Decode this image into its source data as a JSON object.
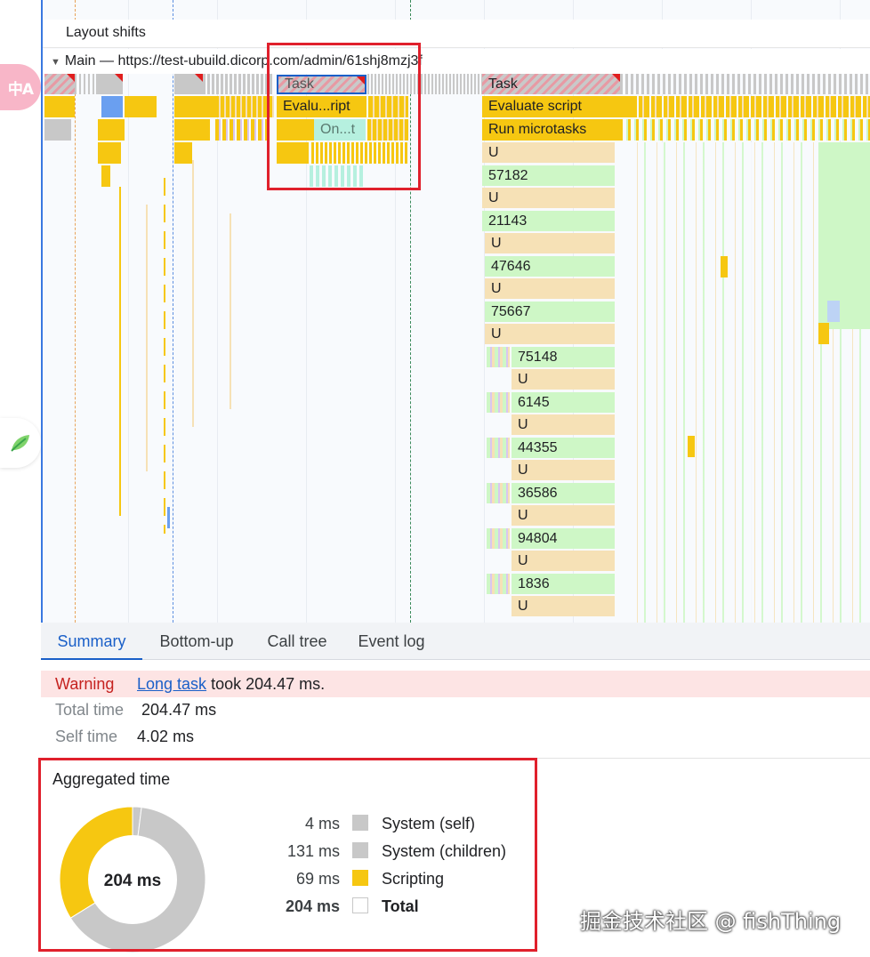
{
  "tracks": {
    "layout_shifts": "Layout shifts",
    "main_title": "Main — https://test-ubuild.dicorp.com/admin/61shj8mzj3f"
  },
  "flame": {
    "selected": {
      "task": "Task",
      "evaluate": "Evalu...ript",
      "callback": "On...t"
    },
    "big_task": {
      "task": "Task",
      "evaluate": "Evaluate script",
      "microtasks": "Run microtasks",
      "stack": [
        "U",
        "57182",
        "U",
        "21143",
        "U",
        "47646",
        "U",
        "75667",
        "U",
        "75148",
        "U",
        "6145",
        "U",
        "44355",
        "U",
        "36586",
        "U",
        "94804",
        "U",
        "1836",
        "U"
      ]
    }
  },
  "tabs": [
    "Summary",
    "Bottom-up",
    "Call tree",
    "Event log"
  ],
  "summary": {
    "warning_label": "Warning",
    "warning_link": "Long task",
    "warning_text": " took 204.47 ms.",
    "total_time_label": "Total time",
    "total_time_value": "204.47 ms",
    "self_time_label": "Self time",
    "self_time_value": "4.02 ms"
  },
  "aggregated": {
    "title": "Aggregated time",
    "center_label": "204 ms",
    "rows": [
      {
        "value": "4 ms",
        "label": "System (self)",
        "color": "#c8c8c8"
      },
      {
        "value": "131 ms",
        "label": "System (children)",
        "color": "#c8c8c8"
      },
      {
        "value": "69 ms",
        "label": "Scripting",
        "color": "#f6c711"
      },
      {
        "value": "204 ms",
        "label": "Total",
        "color": "#ffffff"
      }
    ],
    "slices": [
      {
        "name": "System (self)",
        "ms": 4,
        "color": "#c8c8c8"
      },
      {
        "name": "System (children)",
        "ms": 131,
        "color": "#c8c8c8"
      },
      {
        "name": "Scripting",
        "ms": 69,
        "color": "#f6c711"
      }
    ]
  },
  "rail": {
    "translate_icon": "中A",
    "leaf_icon": "leaf-icon"
  },
  "watermark": "掘金技术社区 @ fishThing"
}
